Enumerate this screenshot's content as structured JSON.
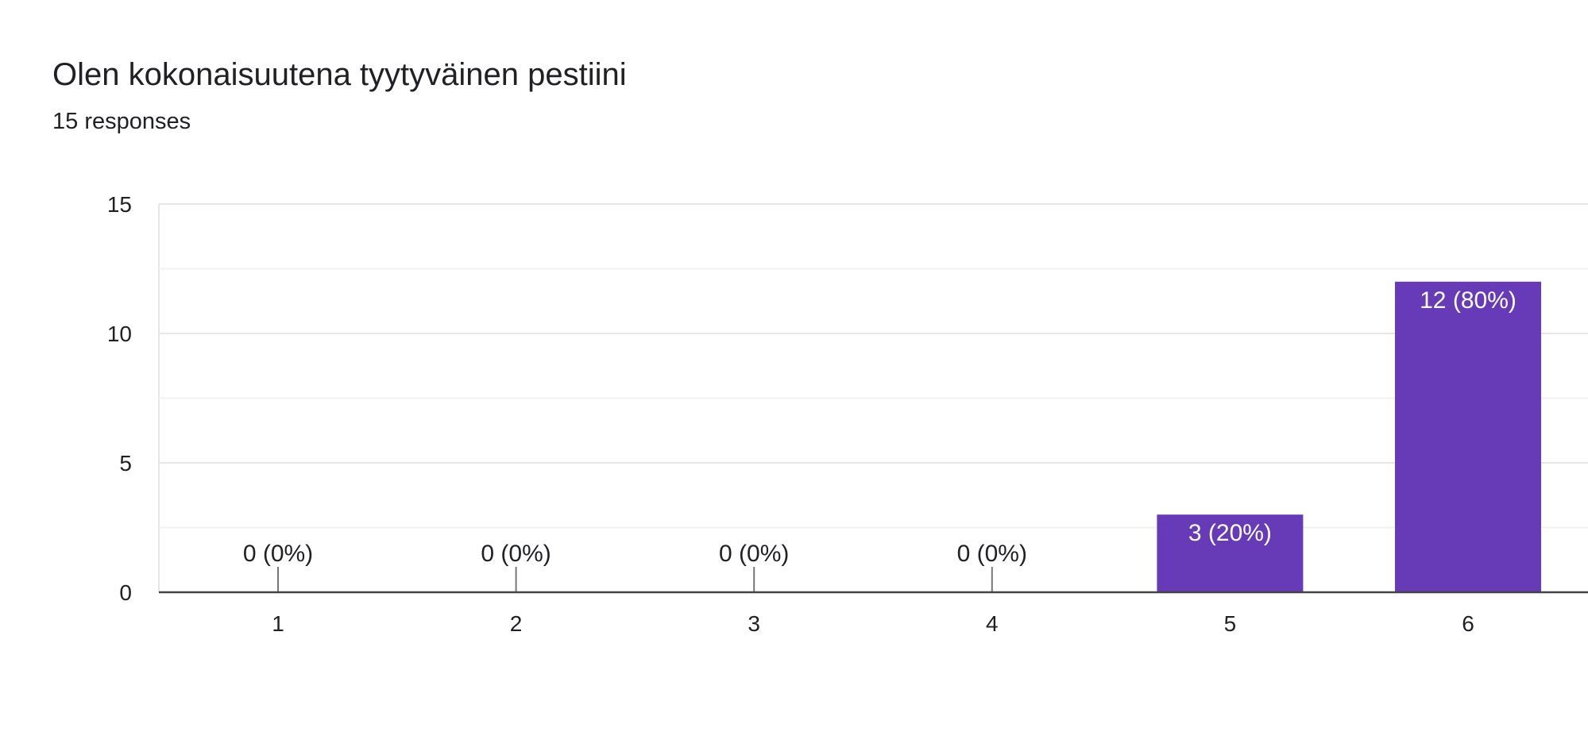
{
  "header": {
    "title": "Olen kokonaisuutena tyytyväinen pestiini",
    "responses": "15 responses"
  },
  "colors": {
    "bar": "#673ab7",
    "gridline": "#e6e6e6",
    "gridline_minor": "#f1f1f1",
    "axis": "#444444",
    "text": "#202124",
    "label_inside": "#ffffff"
  },
  "chart_data": {
    "type": "bar",
    "categories": [
      "1",
      "2",
      "3",
      "4",
      "5",
      "6"
    ],
    "values": [
      0,
      0,
      0,
      0,
      3,
      12
    ],
    "data_labels": [
      "0 (0%)",
      "0 (0%)",
      "0 (0%)",
      "0 (0%)",
      "3 (20%)",
      "12 (80%)"
    ],
    "title": "Olen kokonaisuutena tyytyväinen pestiini",
    "subtitle": "15 responses",
    "xlabel": "",
    "ylabel": "",
    "ylim": [
      0,
      15
    ],
    "yticks": [
      0,
      5,
      10,
      15
    ],
    "grid": true,
    "legend": "none"
  }
}
